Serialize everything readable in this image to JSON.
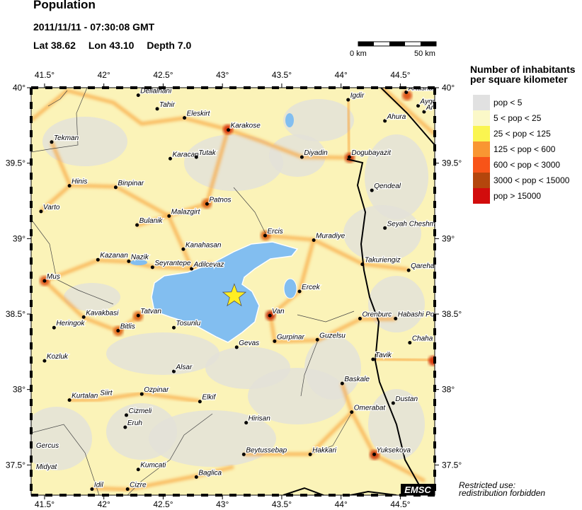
{
  "header": {
    "title": "Population",
    "datetime": "2011/11/11 - 07:30:08 GMT",
    "lat_label": "Lat 38.62",
    "lon_label": "Lon  43.10",
    "depth_label": "Depth  7.0"
  },
  "scale_bar": {
    "start": "0 km",
    "end": "50 km"
  },
  "legend": {
    "title_line1": "Number of inhabitants",
    "title_line2": "per square kilometer",
    "items": [
      {
        "label": "pop < 5",
        "color": "#e1e1e1"
      },
      {
        "label": "5 < pop < 25",
        "color": "#fbf8c8"
      },
      {
        "label": "25 < pop < 125",
        "color": "#faf550"
      },
      {
        "label": "125 < pop < 600",
        "color": "#f99632"
      },
      {
        "label": "600 < pop < 3000",
        "color": "#f85418"
      },
      {
        "label": "3000 < pop < 15000",
        "color": "#b4460c"
      },
      {
        "label": "pop > 15000",
        "color": "#d20c0c"
      }
    ]
  },
  "map": {
    "lon_range": [
      41.387,
      44.79
    ],
    "lat_range": [
      37.3,
      40.0
    ],
    "lon_ticks": [
      {
        "v": 41.5,
        "label": "41.5°"
      },
      {
        "v": 42,
        "label": "42°"
      },
      {
        "v": 42.5,
        "label": "42.5°"
      },
      {
        "v": 43,
        "label": "43°"
      },
      {
        "v": 43.5,
        "label": "43.5°"
      },
      {
        "v": 44,
        "label": "44°"
      },
      {
        "v": 44.5,
        "label": "44.5°"
      }
    ],
    "lat_ticks": [
      {
        "v": 40,
        "label": "40°"
      },
      {
        "v": 39.5,
        "label": "39.5°"
      },
      {
        "v": 39,
        "label": "39°"
      },
      {
        "v": 38.5,
        "label": "38.5°"
      },
      {
        "v": 38,
        "label": "38°"
      },
      {
        "v": 37.5,
        "label": "37.5°"
      }
    ],
    "epicenter": {
      "lat": 38.62,
      "lon": 43.1,
      "color": "#ffee22"
    },
    "water_color": "#82bef0",
    "cities": [
      {
        "name": "Dellalhani",
        "lon": 42.29,
        "lat": 39.95
      },
      {
        "name": "Tahir",
        "lon": 42.45,
        "lat": 39.86
      },
      {
        "name": "Eleskirt",
        "lon": 42.68,
        "lat": 39.8
      },
      {
        "name": "Karakose",
        "lon": 43.05,
        "lat": 39.72
      },
      {
        "name": "Tekman",
        "lon": 41.56,
        "lat": 39.64
      },
      {
        "name": "Karacan",
        "lon": 42.56,
        "lat": 39.53
      },
      {
        "name": "Tutak",
        "lon": 42.78,
        "lat": 39.54
      },
      {
        "name": "Igdir",
        "lon": 44.06,
        "lat": 39.92
      },
      {
        "name": "Ahura",
        "lon": 44.37,
        "lat": 39.78
      },
      {
        "name": "Diyadin",
        "lon": 43.67,
        "lat": 39.54
      },
      {
        "name": "Dogubayazit",
        "lon": 44.07,
        "lat": 39.54
      },
      {
        "name": "Hinis",
        "lon": 41.71,
        "lat": 39.35
      },
      {
        "name": "Binpinar",
        "lon": 42.1,
        "lat": 39.34
      },
      {
        "name": "Patnos",
        "lon": 42.87,
        "lat": 39.23
      },
      {
        "name": "Qendeal",
        "lon": 44.26,
        "lat": 39.32
      },
      {
        "name": "Varto",
        "lon": 41.47,
        "lat": 39.18
      },
      {
        "name": "Malazgirt",
        "lon": 42.55,
        "lat": 39.15
      },
      {
        "name": "Bulanik",
        "lon": 42.28,
        "lat": 39.09
      },
      {
        "name": "Ercis",
        "lon": 43.36,
        "lat": 39.02
      },
      {
        "name": "Muradiye",
        "lon": 43.77,
        "lat": 38.99
      },
      {
        "name": "Seyah Cheshm",
        "lon": 44.37,
        "lat": 39.07
      },
      {
        "name": "Kanahasan",
        "lon": 42.67,
        "lat": 38.93
      },
      {
        "name": "Kazanan",
        "lon": 41.95,
        "lat": 38.86
      },
      {
        "name": "Nazik",
        "lon": 42.21,
        "lat": 38.85
      },
      {
        "name": "Seyrantepe",
        "lon": 42.41,
        "lat": 38.81
      },
      {
        "name": "Adilcevaz",
        "lon": 42.74,
        "lat": 38.8
      },
      {
        "name": "Takuriengiz",
        "lon": 44.18,
        "lat": 38.83
      },
      {
        "name": "Qareha",
        "lon": 44.57,
        "lat": 38.79
      },
      {
        "name": "Mus",
        "lon": 41.5,
        "lat": 38.72
      },
      {
        "name": "Ercek",
        "lon": 43.65,
        "lat": 38.65
      },
      {
        "name": "Tatvan",
        "lon": 42.29,
        "lat": 38.49
      },
      {
        "name": "Van",
        "lon": 43.4,
        "lat": 38.49
      },
      {
        "name": "Kavakbasi",
        "lon": 41.83,
        "lat": 38.48
      },
      {
        "name": "Heringok",
        "lon": 41.58,
        "lat": 38.41
      },
      {
        "name": "Bitlis",
        "lon": 42.12,
        "lat": 38.39
      },
      {
        "name": "Tosunlu",
        "lon": 42.59,
        "lat": 38.41
      },
      {
        "name": "Orenburc",
        "lon": 44.16,
        "lat": 38.47
      },
      {
        "name": "Habashi Po",
        "lon": 44.46,
        "lat": 38.47
      },
      {
        "name": "Gurpinar",
        "lon": 43.44,
        "lat": 38.32
      },
      {
        "name": "Gevas",
        "lon": 43.12,
        "lat": 38.28
      },
      {
        "name": "Guzelsu",
        "lon": 43.8,
        "lat": 38.33
      },
      {
        "name": "Chaha",
        "lon": 44.58,
        "lat": 38.31
      },
      {
        "name": "Kozluk",
        "lon": 41.5,
        "lat": 38.19
      },
      {
        "name": "Tavik",
        "lon": 44.27,
        "lat": 38.2
      },
      {
        "name": "Alsar",
        "lon": 42.59,
        "lat": 38.12
      },
      {
        "name": "Baskale",
        "lon": 44.01,
        "lat": 38.04
      },
      {
        "name": "Ozpinar",
        "lon": 42.32,
        "lat": 37.97
      },
      {
        "name": "Elkif",
        "lon": 42.81,
        "lat": 37.92
      },
      {
        "name": "Kurtalan",
        "lon": 41.71,
        "lat": 37.93
      },
      {
        "name": "Siirt",
        "lon": 41.95,
        "lat": 37.95,
        "nodot": true
      },
      {
        "name": "Dustan",
        "lon": 44.44,
        "lat": 37.91
      },
      {
        "name": "Cizmeli",
        "lon": 42.19,
        "lat": 37.83
      },
      {
        "name": "Omerabat",
        "lon": 44.09,
        "lat": 37.85
      },
      {
        "name": "Hirisan",
        "lon": 43.2,
        "lat": 37.78
      },
      {
        "name": "Eruh",
        "lon": 42.18,
        "lat": 37.75
      },
      {
        "name": "Gercus",
        "lon": 41.41,
        "lat": 37.6,
        "nodot": true
      },
      {
        "name": "Hakkari",
        "lon": 43.74,
        "lat": 37.57
      },
      {
        "name": "Beytussebap",
        "lon": 43.18,
        "lat": 37.57
      },
      {
        "name": "Yuksekova",
        "lon": 44.28,
        "lat": 37.57
      },
      {
        "name": "Kumcati",
        "lon": 42.29,
        "lat": 37.47
      },
      {
        "name": "Midyat",
        "lon": 41.41,
        "lat": 37.46,
        "nodot": true
      },
      {
        "name": "Baglica",
        "lon": 42.78,
        "lat": 37.42
      },
      {
        "name": "Idil",
        "lon": 41.9,
        "lat": 37.34
      },
      {
        "name": "Cizre",
        "lon": 42.2,
        "lat": 37.34
      },
      {
        "name": "Artasha",
        "lon": 44.55,
        "lat": 39.97
      },
      {
        "name": "Aygc",
        "lon": 44.65,
        "lat": 39.88
      },
      {
        "name": "Ar",
        "lon": 44.7,
        "lat": 39.84
      }
    ]
  },
  "watermark": "EMSC",
  "restricted": {
    "line1": "Restricted use:",
    "line2": "redistribution forbidden"
  }
}
